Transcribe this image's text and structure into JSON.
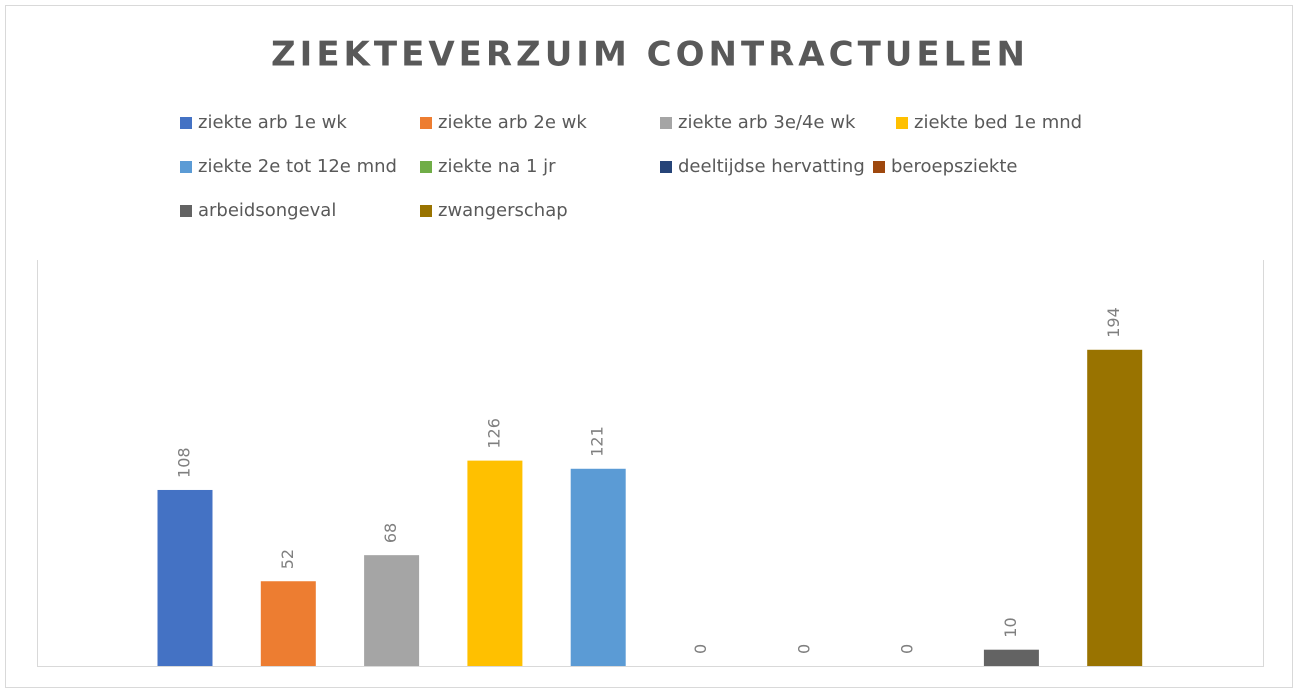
{
  "chart_data": {
    "type": "bar",
    "title": "ZIEKTEVERZUIM  CONTRACTUELEN",
    "series": [
      {
        "name": "ziekte arb 1e wk",
        "color": "#4472c4",
        "values": [
          108
        ]
      },
      {
        "name": "ziekte arb 2e wk",
        "color": "#ed7d31",
        "values": [
          52
        ]
      },
      {
        "name": "ziekte arb 3e/4e wk",
        "color": "#a5a5a5",
        "values": [
          68
        ]
      },
      {
        "name": "ziekte bed 1e mnd",
        "color": "#ffc000",
        "values": [
          126
        ]
      },
      {
        "name": "ziekte 2e tot 12e mnd",
        "color": "#5b9bd5",
        "values": [
          121
        ]
      },
      {
        "name": "ziekte na 1 jr",
        "color": "#70ad47",
        "values": [
          0
        ]
      },
      {
        "name": "deeltijdse hervatting",
        "color": "#264478",
        "values": [
          0
        ]
      },
      {
        "name": "beroepsziekte",
        "color": "#9e480e",
        "values": [
          0
        ]
      },
      {
        "name": "arbeidsongeval",
        "color": "#636363",
        "values": [
          10
        ]
      },
      {
        "name": "zwangerschap",
        "color": "#997300",
        "values": [
          194
        ]
      }
    ],
    "legend": "top",
    "grid": false
  }
}
